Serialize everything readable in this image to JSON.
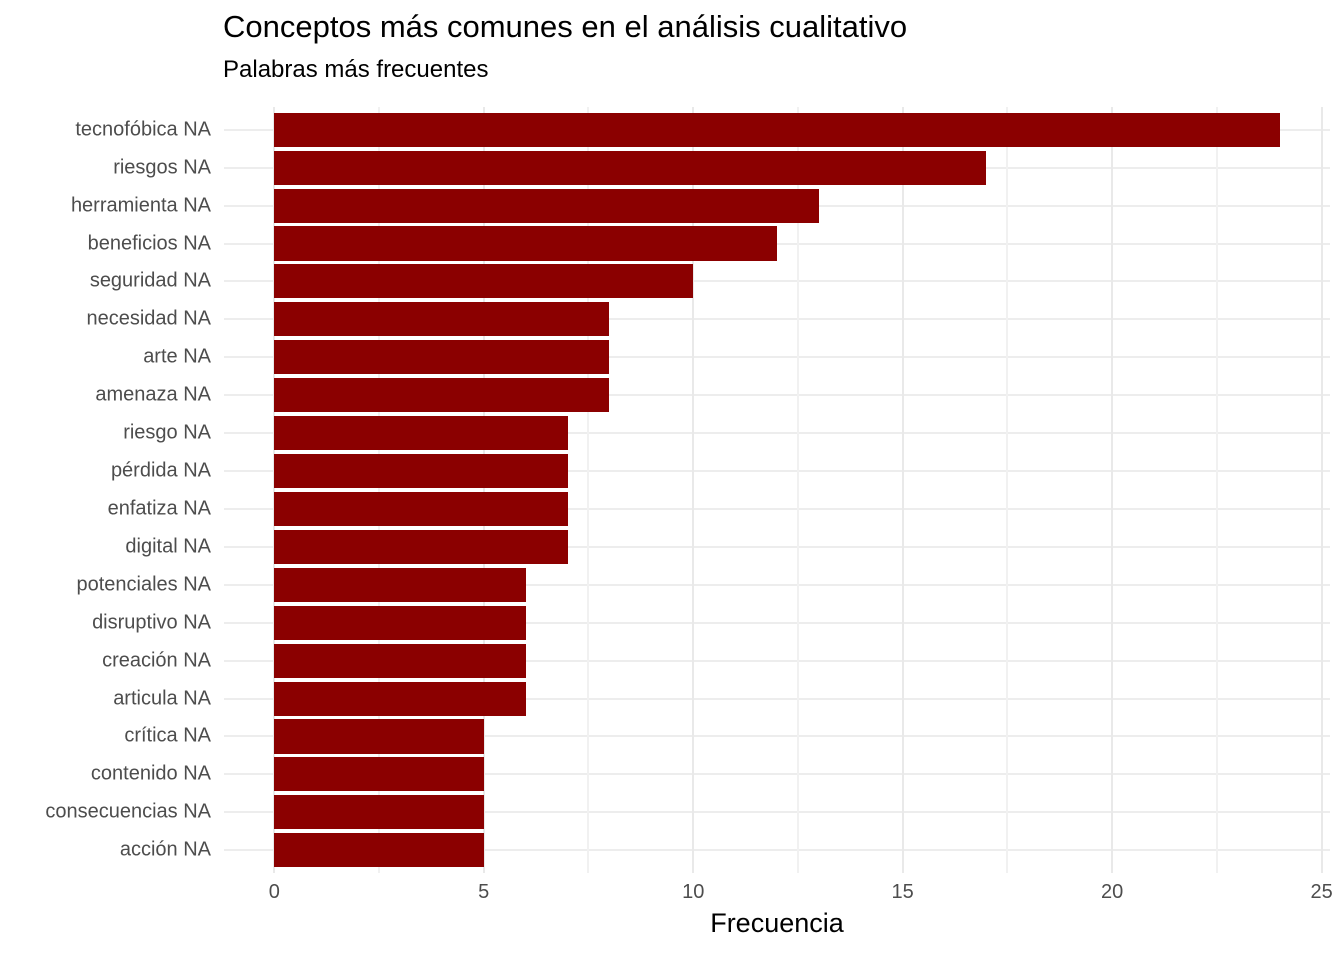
{
  "chart_data": {
    "type": "bar",
    "orientation": "horizontal",
    "title": "Conceptos más comunes en el análisis cualitativo",
    "subtitle": "Palabras más frecuentes",
    "xlabel": "Frecuencia",
    "ylabel": "",
    "categories": [
      "tecnofóbica NA",
      "riesgos NA",
      "herramienta NA",
      "beneficios NA",
      "seguridad NA",
      "necesidad NA",
      "arte NA",
      "amenaza NA",
      "riesgo NA",
      "pérdida NA",
      "enfatiza NA",
      "digital NA",
      "potenciales NA",
      "disruptivo NA",
      "creación NA",
      "articula NA",
      "crítica NA",
      "contenido NA",
      "consecuencias NA",
      "acción NA"
    ],
    "values": [
      24,
      17,
      13,
      12,
      10,
      8,
      8,
      8,
      7,
      7,
      7,
      7,
      6,
      6,
      6,
      6,
      5,
      5,
      5,
      5
    ],
    "xlim": [
      -1.2,
      25.2
    ],
    "x_ticks": [
      0,
      5,
      10,
      15,
      20,
      25
    ],
    "x_minor_ticks": [
      2.5,
      7.5,
      12.5,
      17.5,
      22.5
    ],
    "bar_color": "#8B0000",
    "grid_major_color": "#e9e9e9",
    "grid_minor_color": "#f1f1f1",
    "axis_text_color": "#4d4d4d",
    "legend_position": "none",
    "grid": true
  }
}
